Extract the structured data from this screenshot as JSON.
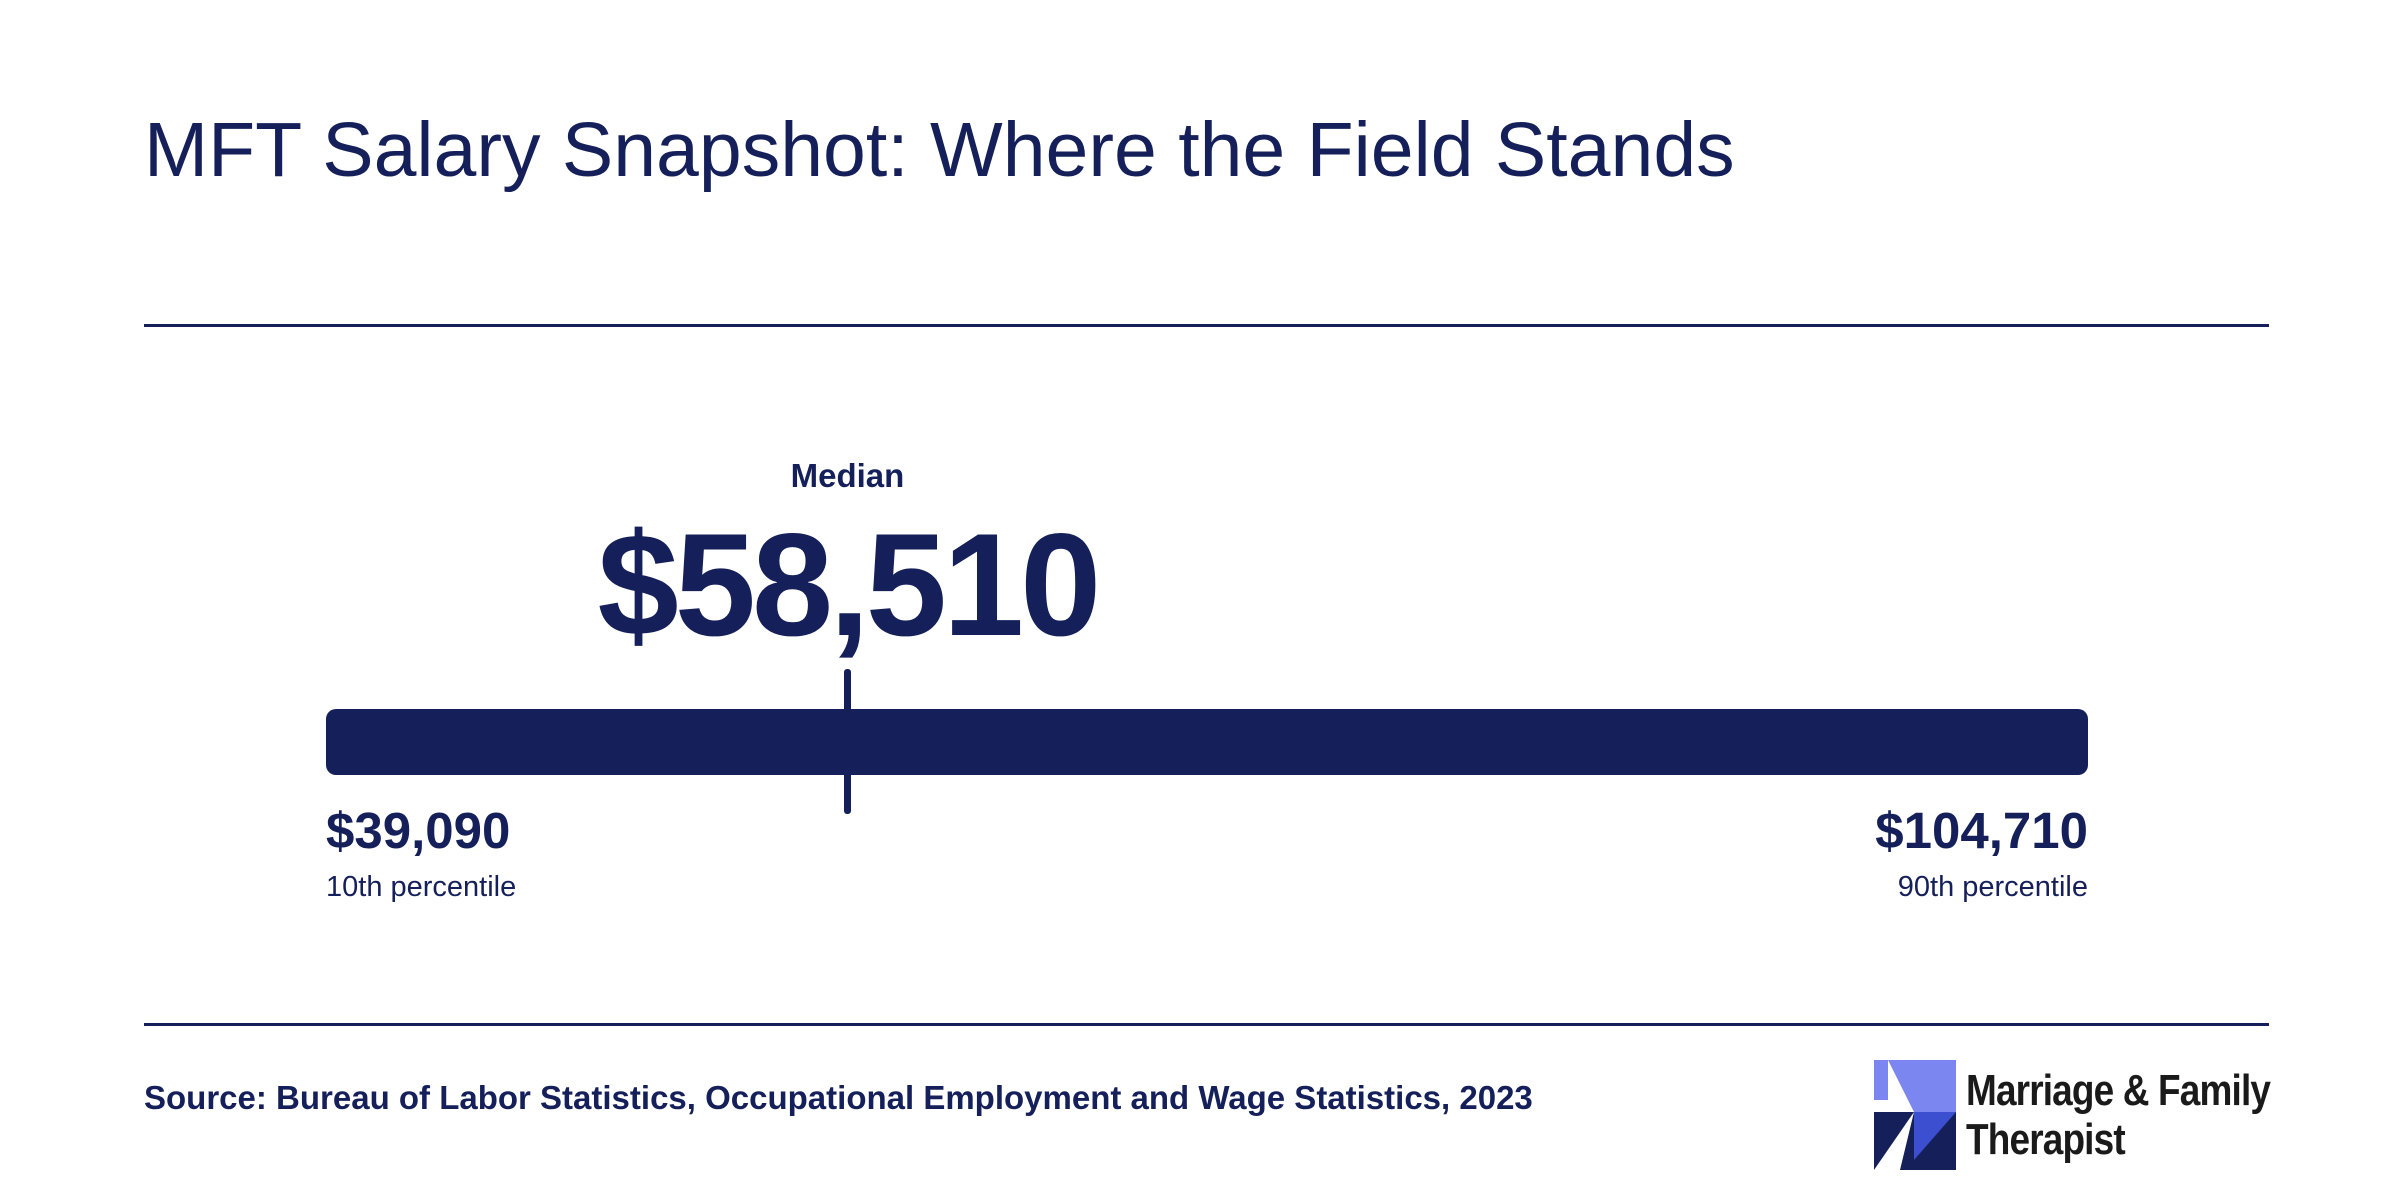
{
  "title": "MFT Salary Snapshot: Where the Field Stands",
  "chart_data": {
    "type": "range",
    "title": "MFT Salary Snapshot: Where the Field Stands",
    "min": {
      "label": "10th percentile",
      "value": 39090,
      "display": "$39,090"
    },
    "median": {
      "label": "Median",
      "value": 58510,
      "display": "$58,510"
    },
    "max": {
      "label": "90th percentile",
      "value": 104710,
      "display": "$104,710"
    },
    "unit": "USD",
    "colors": {
      "bar": "#15205a",
      "text": "#15205a"
    }
  },
  "source": "Source: Bureau of Labor Statistics, Occupational Employment and Wage Statistics, 2023",
  "logo": {
    "line1": "Marriage & Family",
    "line2": "Therapist",
    "colors": {
      "light": "#7b86f0",
      "mid": "#3b4fd0",
      "dark": "#15205a"
    }
  }
}
